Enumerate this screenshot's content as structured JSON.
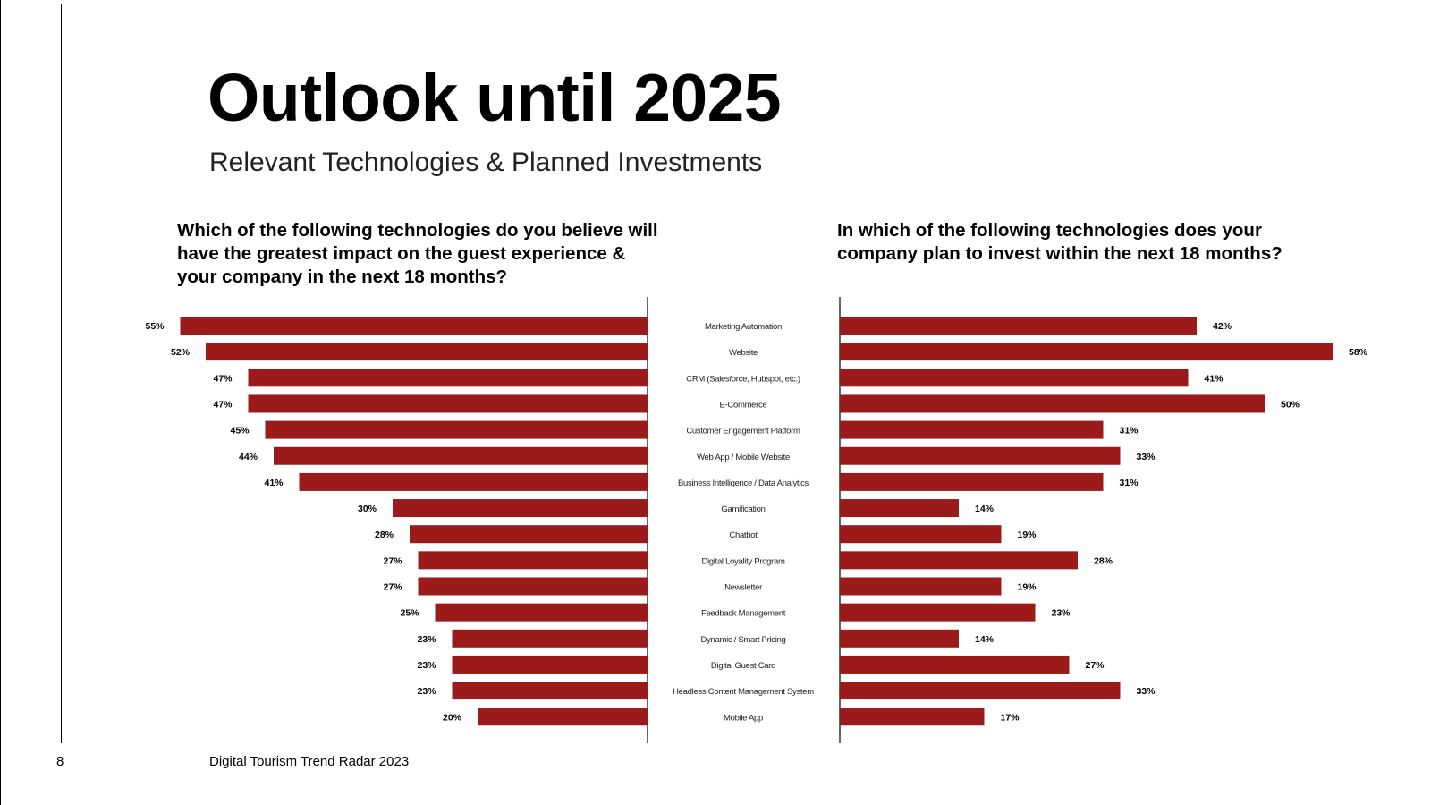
{
  "page": {
    "title": "Outlook until 2025",
    "subtitle": "Relevant Technologies & Planned Investments",
    "page_number": "8",
    "footer_text": "Digital Tourism Trend Radar 2023"
  },
  "colors": {
    "bar": "#9b1b1b",
    "axis": "#000000",
    "text": "#000000"
  },
  "chart_data": [
    {
      "type": "bar",
      "orientation": "horizontal",
      "direction": "right-to-left",
      "title": "Which of the following technologies do you believe will have the greatest impact on the guest experience & your company in the next 18 months?",
      "categories": [
        "Marketing Automation",
        "Website",
        "CRM (Salesforce, Hubspot, etc.)",
        "E-Commerce",
        "Customer Engagement Platform",
        "Web App / Mobile Website",
        "Business Intelligence / Data Analytics",
        "Gamification",
        "Chatbot",
        "Digital Loyality Program",
        "Newsletter",
        "Feedback Management",
        "Dynamic / Smart Pricing",
        "Digital Guest Card",
        "Headless Content Management System",
        "Mobile App"
      ],
      "values": [
        55,
        52,
        47,
        47,
        45,
        44,
        41,
        30,
        28,
        27,
        27,
        25,
        23,
        23,
        23,
        20
      ],
      "labels": [
        "55%",
        "52%",
        "47%",
        "47%",
        "45%",
        "44%",
        "41%",
        "30%",
        "28%",
        "27%",
        "27%",
        "25%",
        "23%",
        "23%",
        "23%",
        "20%"
      ],
      "unit": "%",
      "grid": false,
      "legend": "none"
    },
    {
      "type": "bar",
      "orientation": "horizontal",
      "direction": "left-to-right",
      "title": "In which of the following technologies does your company plan to invest within the next 18 months?",
      "categories": [
        "Marketing Automation",
        "Website",
        "CRM (Salesforce, Hubspot, etc.)",
        "E-Commerce",
        "Customer Engagement Platform",
        "Web App / Mobile Website",
        "Business Intelligence / Data Analytics",
        "Gamification",
        "Chatbot",
        "Digital Loyality Program",
        "Newsletter",
        "Feedback Management",
        "Dynamic / Smart Pricing",
        "Digital Guest Card",
        "Headless Content Management System",
        "Mobile App"
      ],
      "values": [
        42,
        58,
        41,
        50,
        31,
        33,
        31,
        14,
        19,
        28,
        19,
        23,
        14,
        27,
        33,
        17
      ],
      "labels": [
        "42%",
        "58%",
        "41%",
        "50%",
        "31%",
        "33%",
        "31%",
        "14%",
        "19%",
        "28%",
        "19%",
        "23%",
        "14%",
        "27%",
        "33%",
        "17%"
      ],
      "unit": "%",
      "grid": false,
      "legend": "none"
    }
  ]
}
